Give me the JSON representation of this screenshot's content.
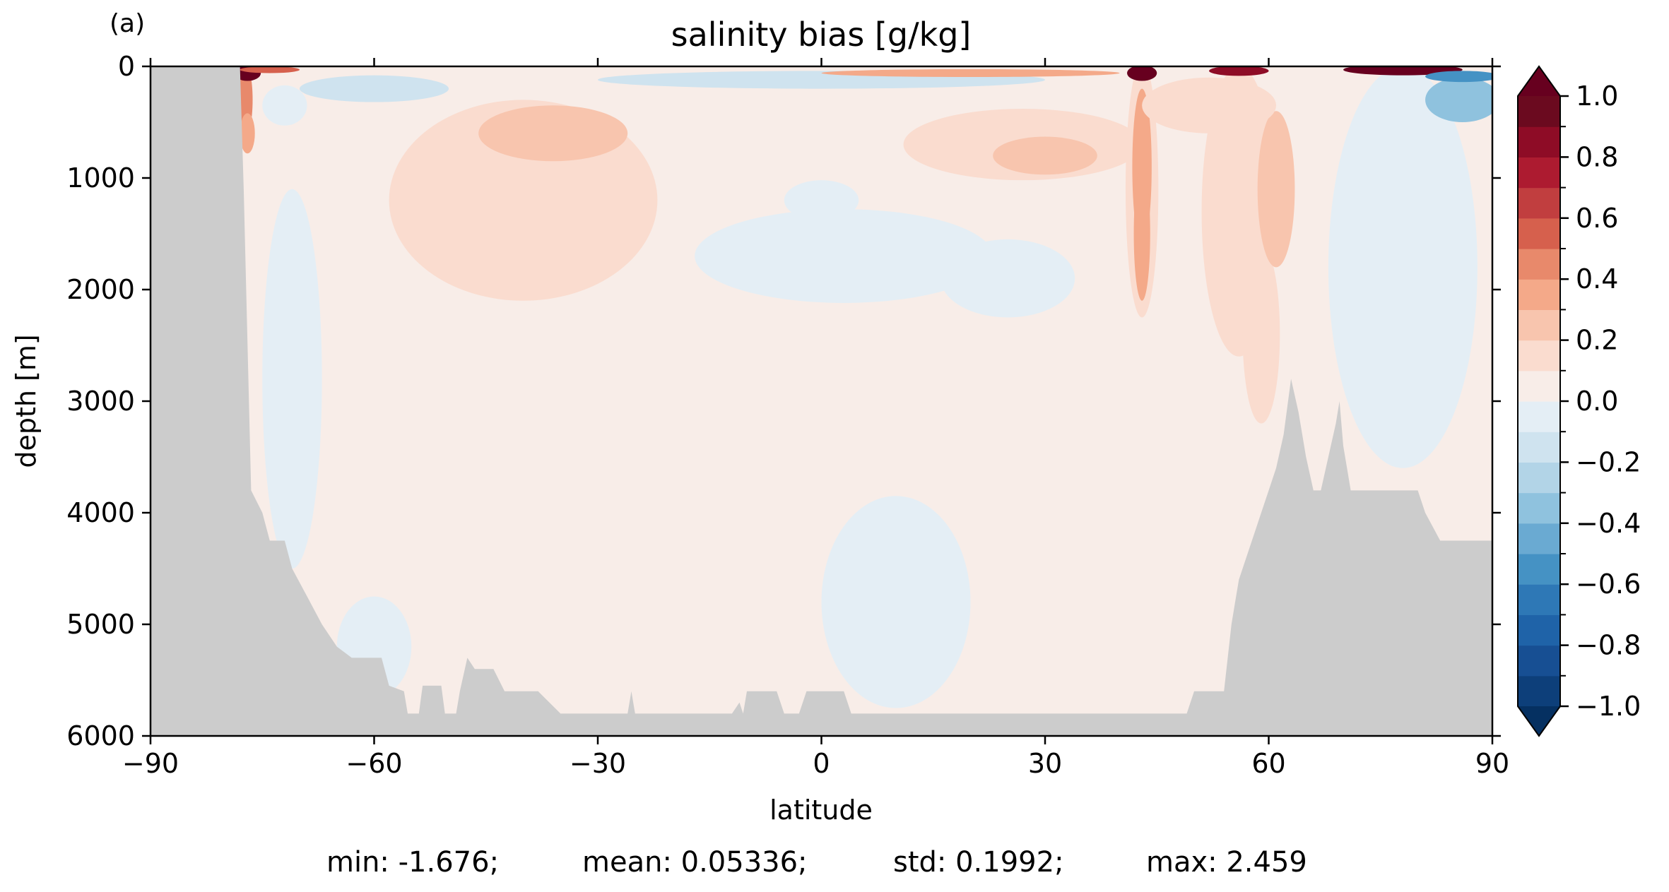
{
  "panel_label": "(a)",
  "chart_data": {
    "type": "heatmap",
    "title": "salinity bias [g/kg]",
    "xlabel": "latitude",
    "ylabel": "depth [m]",
    "xlim": [
      -90,
      90
    ],
    "ylim": [
      6000,
      0
    ],
    "x_ticks": [
      -90,
      -60,
      -30,
      0,
      30,
      60,
      90
    ],
    "x_tick_labels": [
      "−90",
      "−60",
      "−30",
      "0",
      "30",
      "60",
      "90"
    ],
    "y_ticks": [
      0,
      1000,
      2000,
      3000,
      4000,
      5000,
      6000
    ],
    "y_tick_labels": [
      "0",
      "1000",
      "2000",
      "3000",
      "4000",
      "5000",
      "6000"
    ],
    "colorbar": {
      "levels": [
        -1.0,
        -0.9,
        -0.8,
        -0.7,
        -0.6,
        -0.5,
        -0.4,
        -0.3,
        -0.2,
        -0.1,
        0.0,
        0.1,
        0.2,
        0.3,
        0.4,
        0.5,
        0.6,
        0.7,
        0.8,
        0.9,
        1.0
      ],
      "colors": [
        "#0d3f7a",
        "#174f93",
        "#1f63a8",
        "#2e78b6",
        "#4592c4",
        "#6aaad2",
        "#8fc2de",
        "#b2d4e7",
        "#cfe3ef",
        "#e4eef5",
        "#f8ede8",
        "#fadccf",
        "#f8c5ae",
        "#f4a989",
        "#e8896b",
        "#d6604d",
        "#c13e3f",
        "#ad1b30",
        "#8e0c26",
        "#6b0a1f"
      ],
      "under_color": "#053061",
      "over_color": "#67001f",
      "ticks": [
        -1.0,
        -0.8,
        -0.6,
        -0.4,
        -0.2,
        0.0,
        0.2,
        0.4,
        0.6,
        0.8,
        1.0
      ],
      "tick_labels": [
        "−1.0",
        "−0.8",
        "−0.6",
        "−0.4",
        "−0.2",
        "0.0",
        "0.2",
        "0.4",
        "0.6",
        "0.8",
        "1.0"
      ],
      "extend": "both"
    },
    "land_color": "#cccccc",
    "background_value": 0.05,
    "bathymetry": [
      [
        -90,
        0
      ],
      [
        -78,
        0
      ],
      [
        -77.5,
        1100
      ],
      [
        -76.5,
        3800
      ],
      [
        -75,
        4000
      ],
      [
        -74,
        4250
      ],
      [
        -72,
        4250
      ],
      [
        -71,
        4500
      ],
      [
        -69,
        4750
      ],
      [
        -67,
        5000
      ],
      [
        -65,
        5200
      ],
      [
        -63,
        5300
      ],
      [
        -59,
        5300
      ],
      [
        -58,
        5550
      ],
      [
        -56,
        5600
      ],
      [
        -55.5,
        5800
      ],
      [
        -54,
        5800
      ],
      [
        -53.5,
        5550
      ],
      [
        -51,
        5550
      ],
      [
        -50.5,
        5800
      ],
      [
        -49,
        5800
      ],
      [
        -48.5,
        5600
      ],
      [
        -47.5,
        5300
      ],
      [
        -46.5,
        5400
      ],
      [
        -44,
        5400
      ],
      [
        -42.5,
        5600
      ],
      [
        -38,
        5600
      ],
      [
        -35,
        5800
      ],
      [
        -26,
        5800
      ],
      [
        -25.5,
        5600
      ],
      [
        -25,
        5800
      ],
      [
        -12,
        5800
      ],
      [
        -11,
        5700
      ],
      [
        -10.5,
        5800
      ],
      [
        -10,
        5600
      ],
      [
        -6,
        5600
      ],
      [
        -5,
        5800
      ],
      [
        -3,
        5800
      ],
      [
        -2,
        5600
      ],
      [
        3,
        5600
      ],
      [
        4,
        5800
      ],
      [
        49,
        5800
      ],
      [
        50,
        5600
      ],
      [
        54,
        5600
      ],
      [
        54.5,
        5300
      ],
      [
        55,
        5000
      ],
      [
        55.5,
        4800
      ],
      [
        56,
        4600
      ],
      [
        57,
        4400
      ],
      [
        58,
        4200
      ],
      [
        59,
        4000
      ],
      [
        60,
        3800
      ],
      [
        61,
        3600
      ],
      [
        62,
        3300
      ],
      [
        63,
        2800
      ],
      [
        64,
        3100
      ],
      [
        65,
        3500
      ],
      [
        66,
        3800
      ],
      [
        67,
        3800
      ],
      [
        68,
        3500
      ],
      [
        69,
        3200
      ],
      [
        69.5,
        3000
      ],
      [
        70,
        3400
      ],
      [
        71,
        3800
      ],
      [
        80,
        3800
      ],
      [
        81,
        4000
      ],
      [
        83,
        4250
      ],
      [
        90,
        4250
      ],
      [
        90,
        6000
      ],
      [
        -90,
        6000
      ]
    ],
    "anomalies": [
      {
        "lat": 0,
        "depth": 1200,
        "rlat": 5,
        "rdepth": 180,
        "value": -0.05
      },
      {
        "lat": -40,
        "depth": 1200,
        "rlat": 18,
        "rdepth": 900,
        "value": 0.15
      },
      {
        "lat": -36,
        "depth": 600,
        "rlat": 10,
        "rdepth": 250,
        "value": 0.28
      },
      {
        "lat": 3,
        "depth": 1700,
        "rlat": 20,
        "rdepth": 420,
        "value": -0.05
      },
      {
        "lat": 25,
        "depth": 1900,
        "rlat": 9,
        "rdepth": 350,
        "value": -0.05
      },
      {
        "lat": 27,
        "depth": 700,
        "rlat": 16,
        "rdepth": 320,
        "value": 0.15
      },
      {
        "lat": 30,
        "depth": 800,
        "rlat": 7,
        "rdepth": 170,
        "value": 0.27
      },
      {
        "lat": 10,
        "depth": 4800,
        "rlat": 10,
        "rdepth": 950,
        "value": -0.05
      },
      {
        "lat": -60,
        "depth": 5200,
        "rlat": 5,
        "rdepth": 450,
        "value": -0.05
      },
      {
        "lat": -71,
        "depth": 2800,
        "rlat": 4,
        "rdepth": 1700,
        "value": -0.05
      },
      {
        "lat": 43,
        "depth": 1100,
        "rlat": 2.2,
        "rdepth": 1150,
        "value": 0.17
      },
      {
        "lat": 43,
        "depth": 900,
        "rlat": 1.3,
        "rdepth": 700,
        "value": 0.38
      },
      {
        "lat": 43,
        "depth": 1500,
        "rlat": 1.1,
        "rdepth": 600,
        "value": 0.3
      },
      {
        "lat": 56,
        "depth": 1300,
        "rlat": 5,
        "rdepth": 1300,
        "value": 0.14
      },
      {
        "lat": 59,
        "depth": 2400,
        "rlat": 2.5,
        "rdepth": 800,
        "value": 0.13
      },
      {
        "lat": 61,
        "depth": 1100,
        "rlat": 2.5,
        "rdepth": 700,
        "value": 0.28
      },
      {
        "lat": 52,
        "depth": 350,
        "rlat": 9,
        "rdepth": 250,
        "value": 0.14
      },
      {
        "lat": 78,
        "depth": 1800,
        "rlat": 10,
        "rdepth": 1800,
        "value": -0.1
      },
      {
        "lat": 86,
        "depth": 300,
        "rlat": 5,
        "rdepth": 200,
        "value": -0.35
      },
      {
        "lat": 0,
        "depth": 120,
        "rlat": 30,
        "rdepth": 80,
        "value": -0.12
      },
      {
        "lat": -60,
        "depth": 200,
        "rlat": 10,
        "rdepth": 120,
        "value": -0.12
      },
      {
        "lat": -72,
        "depth": 350,
        "rlat": 3,
        "rdepth": 180,
        "value": -0.1
      },
      {
        "lat": -77.5,
        "depth": 300,
        "rlat": 1.2,
        "rdepth": 350,
        "value": 0.45
      },
      {
        "lat": -77,
        "depth": 600,
        "rlat": 1,
        "rdepth": 180,
        "value": 0.35
      },
      {
        "lat": -77,
        "depth": 60,
        "rlat": 1.8,
        "rdepth": 70,
        "value": 1.1
      },
      {
        "lat": 43,
        "depth": 60,
        "rlat": 2,
        "rdepth": 70,
        "value": 1.1
      },
      {
        "lat": 56,
        "depth": 40,
        "rlat": 4,
        "rdepth": 45,
        "value": 0.85
      },
      {
        "lat": 78,
        "depth": 30,
        "rlat": 8,
        "rdepth": 50,
        "value": 1.2
      },
      {
        "lat": 86,
        "depth": 90,
        "rlat": 5,
        "rdepth": 50,
        "value": -0.55
      },
      {
        "lat": -74,
        "depth": 30,
        "rlat": 4,
        "rdepth": 30,
        "value": 0.5
      },
      {
        "lat": 20,
        "depth": 60,
        "rlat": 20,
        "rdepth": 35,
        "value": 0.3
      }
    ]
  },
  "stats": {
    "min": "min: -1.676;",
    "mean": "mean: 0.05336;",
    "std": "std: 0.1992;",
    "max": "max: 2.459"
  }
}
